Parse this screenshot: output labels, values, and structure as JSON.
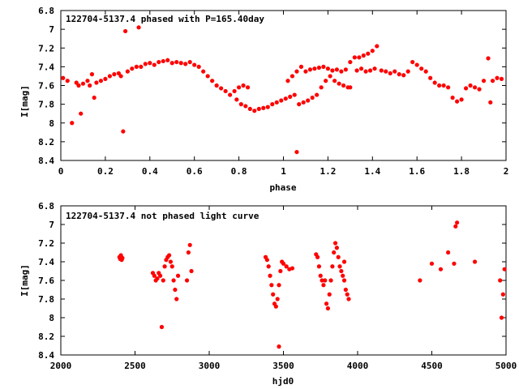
{
  "chart_data": [
    {
      "type": "scatter",
      "title": "122704-5137.4 phased with P=165.40day",
      "xlabel": "phase",
      "ylabel": "I[mag]",
      "xlim": [
        0,
        2
      ],
      "ylim": [
        6.8,
        8.4
      ],
      "y_inverted": true,
      "xticks": [
        "0",
        "0.2",
        "0.4",
        "0.6",
        "0.8",
        "1",
        "1.2",
        "1.4",
        "1.6",
        "1.8",
        "2"
      ],
      "yticks": [
        "6.8",
        "7",
        "7.2",
        "7.4",
        "7.6",
        "7.8",
        "8",
        "8.2",
        "8.4"
      ],
      "grid": false,
      "color": "#ff0000",
      "points": [
        [
          0.01,
          7.52
        ],
        [
          0.03,
          7.55
        ],
        [
          0.05,
          8.0
        ],
        [
          0.07,
          7.57
        ],
        [
          0.08,
          7.6
        ],
        [
          0.09,
          7.9
        ],
        [
          0.1,
          7.58
        ],
        [
          0.12,
          7.55
        ],
        [
          0.13,
          7.6
        ],
        [
          0.14,
          7.48
        ],
        [
          0.15,
          7.73
        ],
        [
          0.16,
          7.57
        ],
        [
          0.18,
          7.55
        ],
        [
          0.2,
          7.53
        ],
        [
          0.22,
          7.5
        ],
        [
          0.24,
          7.48
        ],
        [
          0.26,
          7.47
        ],
        [
          0.27,
          7.5
        ],
        [
          0.28,
          8.09
        ],
        [
          0.29,
          7.02
        ],
        [
          0.3,
          7.45
        ],
        [
          0.32,
          7.42
        ],
        [
          0.34,
          7.4
        ],
        [
          0.35,
          6.98
        ],
        [
          0.36,
          7.4
        ],
        [
          0.38,
          7.37
        ],
        [
          0.4,
          7.36
        ],
        [
          0.42,
          7.38
        ],
        [
          0.44,
          7.35
        ],
        [
          0.46,
          7.34
        ],
        [
          0.48,
          7.33
        ],
        [
          0.5,
          7.36
        ],
        [
          0.52,
          7.35
        ],
        [
          0.54,
          7.36
        ],
        [
          0.56,
          7.37
        ],
        [
          0.58,
          7.35
        ],
        [
          0.6,
          7.38
        ],
        [
          0.62,
          7.4
        ],
        [
          0.64,
          7.45
        ],
        [
          0.66,
          7.5
        ],
        [
          0.68,
          7.55
        ],
        [
          0.7,
          7.6
        ],
        [
          0.72,
          7.63
        ],
        [
          0.74,
          7.66
        ],
        [
          0.76,
          7.7
        ],
        [
          0.78,
          7.66
        ],
        [
          0.8,
          7.62
        ],
        [
          0.82,
          7.6
        ],
        [
          0.84,
          7.62
        ],
        [
          0.79,
          7.75
        ],
        [
          0.81,
          7.8
        ],
        [
          0.83,
          7.82
        ],
        [
          0.85,
          7.85
        ],
        [
          0.87,
          7.87
        ],
        [
          0.89,
          7.85
        ],
        [
          0.91,
          7.84
        ],
        [
          0.93,
          7.83
        ],
        [
          0.95,
          7.8
        ],
        [
          0.97,
          7.78
        ],
        [
          0.99,
          7.76
        ],
        [
          1.01,
          7.74
        ],
        [
          1.03,
          7.72
        ],
        [
          1.05,
          7.7
        ],
        [
          1.06,
          8.31
        ],
        [
          1.07,
          7.8
        ],
        [
          1.09,
          7.78
        ],
        [
          1.11,
          7.76
        ],
        [
          1.13,
          7.73
        ],
        [
          1.15,
          7.7
        ],
        [
          1.17,
          7.62
        ],
        [
          1.19,
          7.55
        ],
        [
          1.21,
          7.5
        ],
        [
          1.02,
          7.55
        ],
        [
          1.04,
          7.5
        ],
        [
          1.06,
          7.45
        ],
        [
          1.08,
          7.4
        ],
        [
          1.1,
          7.45
        ],
        [
          1.12,
          7.43
        ],
        [
          1.14,
          7.42
        ],
        [
          1.16,
          7.41
        ],
        [
          1.18,
          7.4
        ],
        [
          1.2,
          7.42
        ],
        [
          1.22,
          7.44
        ],
        [
          1.24,
          7.43
        ],
        [
          1.26,
          7.45
        ],
        [
          1.28,
          7.43
        ],
        [
          1.3,
          7.35
        ],
        [
          1.32,
          7.3
        ],
        [
          1.34,
          7.3
        ],
        [
          1.36,
          7.28
        ],
        [
          1.38,
          7.26
        ],
        [
          1.4,
          7.23
        ],
        [
          1.42,
          7.18
        ],
        [
          1.44,
          7.44
        ],
        [
          1.46,
          7.45
        ],
        [
          1.48,
          7.47
        ],
        [
          1.5,
          7.45
        ],
        [
          1.52,
          7.48
        ],
        [
          1.54,
          7.49
        ],
        [
          1.56,
          7.45
        ],
        [
          1.58,
          7.35
        ],
        [
          1.6,
          7.38
        ],
        [
          1.62,
          7.42
        ],
        [
          1.64,
          7.45
        ],
        [
          1.66,
          7.52
        ],
        [
          1.68,
          7.57
        ],
        [
          1.7,
          7.6
        ],
        [
          1.72,
          7.6
        ],
        [
          1.74,
          7.62
        ],
        [
          1.76,
          7.73
        ],
        [
          1.78,
          7.77
        ],
        [
          1.8,
          7.75
        ],
        [
          1.82,
          7.63
        ],
        [
          1.84,
          7.6
        ],
        [
          1.86,
          7.62
        ],
        [
          1.88,
          7.64
        ],
        [
          1.9,
          7.55
        ],
        [
          1.92,
          7.31
        ],
        [
          1.93,
          7.78
        ],
        [
          1.94,
          7.55
        ],
        [
          1.96,
          7.52
        ],
        [
          1.98,
          7.53
        ],
        [
          1.23,
          7.55
        ],
        [
          1.25,
          7.58
        ],
        [
          1.27,
          7.6
        ],
        [
          1.29,
          7.62
        ],
        [
          1.33,
          7.44
        ],
        [
          1.35,
          7.42
        ],
        [
          1.37,
          7.45
        ],
        [
          1.39,
          7.44
        ],
        [
          1.41,
          7.42
        ],
        [
          1.3,
          7.62
        ]
      ]
    },
    {
      "type": "scatter",
      "title": "122704-5137.4 not phased light curve",
      "xlabel": "hjd0",
      "ylabel": "I[mag]",
      "xlim": [
        2000,
        5000
      ],
      "ylim": [
        6.8,
        8.4
      ],
      "y_inverted": true,
      "xticks": [
        "2000",
        "2500",
        "3000",
        "3500",
        "4000",
        "4500",
        "5000"
      ],
      "yticks": [
        "6.8",
        "7",
        "7.2",
        "7.4",
        "7.6",
        "7.8",
        "8",
        "8.2",
        "8.4"
      ],
      "grid": false,
      "color": "#ff0000",
      "points": [
        [
          2395,
          7.35
        ],
        [
          2400,
          7.37
        ],
        [
          2405,
          7.33
        ],
        [
          2410,
          7.38
        ],
        [
          2415,
          7.36
        ],
        [
          2620,
          7.52
        ],
        [
          2630,
          7.55
        ],
        [
          2640,
          7.6
        ],
        [
          2650,
          7.58
        ],
        [
          2660,
          7.52
        ],
        [
          2670,
          7.55
        ],
        [
          2680,
          8.1
        ],
        [
          2690,
          7.6
        ],
        [
          2700,
          7.45
        ],
        [
          2710,
          7.38
        ],
        [
          2720,
          7.35
        ],
        [
          2730,
          7.33
        ],
        [
          2740,
          7.4
        ],
        [
          2750,
          7.45
        ],
        [
          2760,
          7.6
        ],
        [
          2770,
          7.7
        ],
        [
          2780,
          7.8
        ],
        [
          2790,
          7.55
        ],
        [
          2850,
          7.6
        ],
        [
          2860,
          7.3
        ],
        [
          2870,
          7.22
        ],
        [
          2880,
          7.5
        ],
        [
          3380,
          7.35
        ],
        [
          3390,
          7.38
        ],
        [
          3400,
          7.45
        ],
        [
          3410,
          7.55
        ],
        [
          3420,
          7.65
        ],
        [
          3430,
          7.75
        ],
        [
          3440,
          7.85
        ],
        [
          3450,
          7.88
        ],
        [
          3460,
          7.8
        ],
        [
          3470,
          7.65
        ],
        [
          3480,
          7.5
        ],
        [
          3490,
          7.4
        ],
        [
          3470,
          8.31
        ],
        [
          3500,
          7.42
        ],
        [
          3520,
          7.45
        ],
        [
          3540,
          7.48
        ],
        [
          3560,
          7.47
        ],
        [
          3720,
          7.32
        ],
        [
          3730,
          7.35
        ],
        [
          3740,
          7.45
        ],
        [
          3750,
          7.55
        ],
        [
          3760,
          7.6
        ],
        [
          3770,
          7.65
        ],
        [
          3780,
          7.6
        ],
        [
          3790,
          7.85
        ],
        [
          3800,
          7.9
        ],
        [
          3810,
          7.75
        ],
        [
          3820,
          7.6
        ],
        [
          3830,
          7.45
        ],
        [
          3840,
          7.3
        ],
        [
          3850,
          7.2
        ],
        [
          3860,
          7.25
        ],
        [
          3870,
          7.35
        ],
        [
          3880,
          7.45
        ],
        [
          3890,
          7.5
        ],
        [
          3900,
          7.55
        ],
        [
          3910,
          7.6
        ],
        [
          3920,
          7.7
        ],
        [
          3930,
          7.75
        ],
        [
          3940,
          7.8
        ],
        [
          3910,
          7.4
        ],
        [
          4420,
          7.6
        ],
        [
          4500,
          7.42
        ],
        [
          4560,
          7.48
        ],
        [
          4610,
          7.3
        ],
        [
          4650,
          7.42
        ],
        [
          4660,
          7.02
        ],
        [
          4670,
          6.98
        ],
        [
          4790,
          7.4
        ],
        [
          4960,
          7.6
        ],
        [
          4970,
          8.0
        ],
        [
          4980,
          7.75
        ],
        [
          4990,
          7.48
        ]
      ]
    }
  ]
}
